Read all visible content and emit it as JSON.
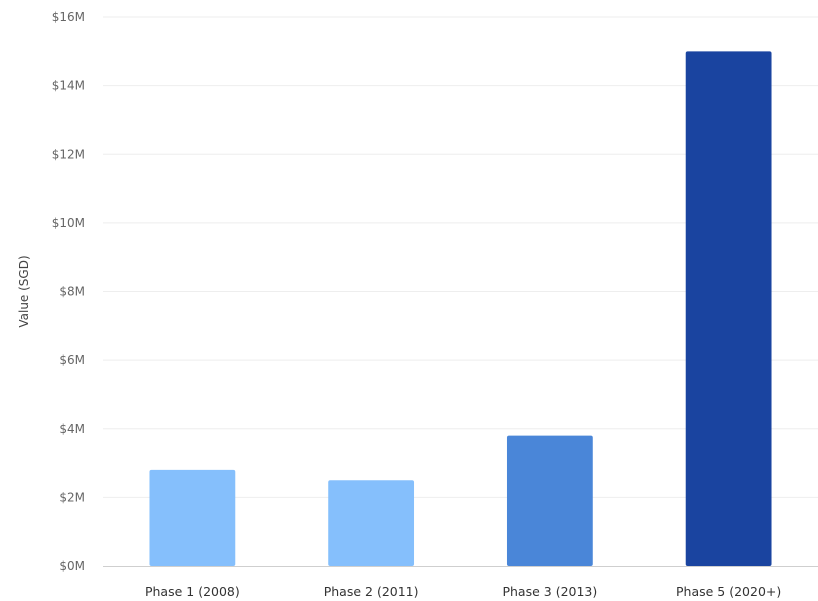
{
  "chart_data": {
    "type": "bar",
    "title": "",
    "xlabel": "",
    "ylabel": "Value (SGD)",
    "categories": [
      "Phase 1 (2008)",
      "Phase 2 (2011)",
      "Phase 3 (2013)",
      "Phase 5 (2020+)"
    ],
    "values": [
      2800000,
      2500000,
      3800000,
      15000000
    ],
    "bar_colors": [
      "#85bffc",
      "#85bffc",
      "#4a86d8",
      "#1a44a0"
    ],
    "ylim": [
      0,
      16000000
    ],
    "y_ticks": [
      {
        "value": 0,
        "label": "$0M"
      },
      {
        "value": 2000000,
        "label": "$2M"
      },
      {
        "value": 4000000,
        "label": "$4M"
      },
      {
        "value": 6000000,
        "label": "$6M"
      },
      {
        "value": 8000000,
        "label": "$8M"
      },
      {
        "value": 10000000,
        "label": "$10M"
      },
      {
        "value": 12000000,
        "label": "$12M"
      },
      {
        "value": 14000000,
        "label": "$14M"
      },
      {
        "value": 16000000,
        "label": "$16M"
      }
    ],
    "grid": true,
    "legend": "none"
  }
}
